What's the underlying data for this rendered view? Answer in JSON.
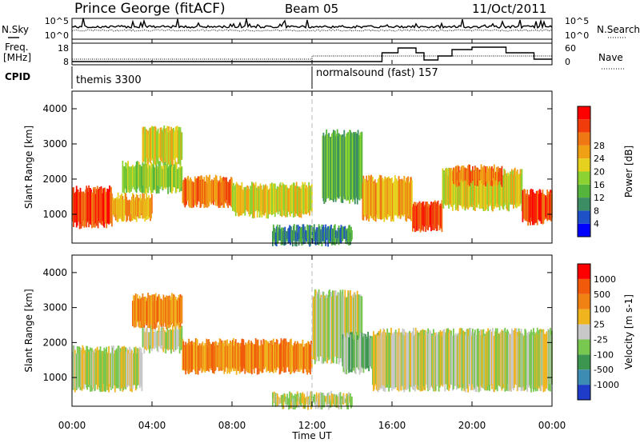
{
  "header": {
    "station": "Prince George (fitACF)",
    "beam": "Beam 05",
    "date": "11/Oct/2011"
  },
  "top_panels": {
    "nsky_label": "N.Sky",
    "nsearch_label": "N.Search",
    "noise_ticks_left": [
      "10^5",
      "10^0"
    ],
    "noise_ticks_right": [
      "10^5",
      "10^0"
    ],
    "freq_label": "Freq.",
    "freq_unit": "[MHz]",
    "nave_label": "Nave",
    "freq_ticks": [
      "18",
      "8"
    ],
    "nave_ticks": [
      "60",
      "0"
    ],
    "cpid_label": "CPID",
    "cpid_modes": [
      {
        "name": "themis 3300",
        "start_hour": 0
      },
      {
        "name": "normalsound (fast) 157",
        "start_hour": 12
      }
    ]
  },
  "chart_data": [
    {
      "type": "heatmap",
      "ylabel": "Slant Range [km]",
      "xlabel": "Time UT",
      "x_ticks": [
        "00:00",
        "04:00",
        "08:00",
        "12:00",
        "16:00",
        "20:00",
        "00:00"
      ],
      "y_ticks": [
        "1000",
        "2000",
        "3000",
        "4000"
      ],
      "ylim": [
        180,
        4500
      ],
      "colorbar": {
        "label": "Power [dB]",
        "ticks": [
          "4",
          "8",
          "12",
          "16",
          "20",
          "24",
          "28"
        ],
        "colors": [
          "#0000ff",
          "#1e50c8",
          "#3c8c64",
          "#55b43c",
          "#8cd232",
          "#e6d21e",
          "#f0a014",
          "#f07814",
          "#f03c0a",
          "#ff0000"
        ]
      },
      "bands": [
        {
          "t0": 0.0,
          "t1": 2.0,
          "r0": 700,
          "r1": 1700,
          "c": 8
        },
        {
          "t0": 2.0,
          "t1": 4.0,
          "r0": 900,
          "r1": 1500,
          "c": 6
        },
        {
          "t0": 2.5,
          "t1": 5.5,
          "r0": 1700,
          "r1": 2400,
          "c": 4
        },
        {
          "t0": 3.5,
          "t1": 5.5,
          "r0": 2500,
          "r1": 3400,
          "c": 5
        },
        {
          "t0": 5.5,
          "t1": 8.0,
          "r0": 1300,
          "r1": 2000,
          "c": 7
        },
        {
          "t0": 8.0,
          "t1": 12.0,
          "r0": 1000,
          "r1": 1800,
          "c": 5
        },
        {
          "t0": 12.5,
          "t1": 14.5,
          "r0": 1400,
          "r1": 3300,
          "c": 3
        },
        {
          "t0": 14.5,
          "t1": 17.0,
          "r0": 900,
          "r1": 2000,
          "c": 6
        },
        {
          "t0": 17.0,
          "t1": 18.5,
          "r0": 600,
          "r1": 1300,
          "c": 8
        },
        {
          "t0": 18.5,
          "t1": 22.5,
          "r0": 1200,
          "r1": 2200,
          "c": 5
        },
        {
          "t0": 19.0,
          "t1": 21.5,
          "r0": 1900,
          "r1": 2300,
          "c": 7
        },
        {
          "t0": 22.5,
          "t1": 24.0,
          "r0": 800,
          "r1": 1600,
          "c": 8
        },
        {
          "t0": 10.0,
          "t1": 14.0,
          "r0": 200,
          "r1": 600,
          "c": 2
        }
      ]
    },
    {
      "type": "heatmap",
      "ylabel": "Slant Range [km]",
      "xlabel": "Time UT",
      "x_ticks": [
        "00:00",
        "04:00",
        "08:00",
        "12:00",
        "16:00",
        "20:00",
        "00:00"
      ],
      "y_ticks": [
        "1000",
        "2000",
        "3000",
        "4000"
      ],
      "ylim": [
        180,
        4500
      ],
      "colorbar": {
        "label": "Velocity [m s-1]",
        "ticks": [
          "1000",
          "500",
          "100",
          "25",
          "-25",
          "-100",
          "-500",
          "-1000"
        ],
        "colors": [
          "#1e3cc8",
          "#3c8cb4",
          "#3c9650",
          "#78c850",
          "#c8c8c8",
          "#f0b41e",
          "#f08214",
          "#f05a0a",
          "#ff0000"
        ]
      },
      "bands": [
        {
          "t0": 0.0,
          "t1": 3.5,
          "r0": 700,
          "r1": 1800,
          "c": 4
        },
        {
          "t0": 3.5,
          "t1": 5.5,
          "r0": 1800,
          "r1": 2400,
          "c": 4
        },
        {
          "t0": 3.0,
          "t1": 5.5,
          "r0": 2500,
          "r1": 3300,
          "c": 6
        },
        {
          "t0": 5.5,
          "t1": 12.0,
          "r0": 1200,
          "r1": 2000,
          "c": 6
        },
        {
          "t0": 12.0,
          "t1": 14.5,
          "r0": 1500,
          "r1": 3400,
          "c": 4
        },
        {
          "t0": 13.5,
          "t1": 15.5,
          "r0": 1200,
          "r1": 2200,
          "c": 3
        },
        {
          "t0": 15.0,
          "t1": 24.0,
          "r0": 700,
          "r1": 2300,
          "c": 4
        },
        {
          "t0": 10.0,
          "t1": 14.0,
          "r0": 200,
          "r1": 500,
          "c": 4
        }
      ]
    }
  ]
}
